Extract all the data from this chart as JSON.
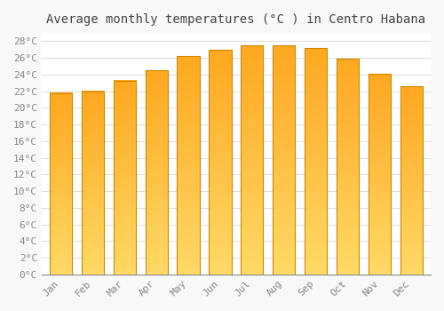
{
  "title": "Average monthly temperatures (°C ) in Centro Habana",
  "months": [
    "Jan",
    "Feb",
    "Mar",
    "Apr",
    "May",
    "Jun",
    "Jul",
    "Aug",
    "Sep",
    "Oct",
    "Nov",
    "Dec"
  ],
  "values": [
    21.8,
    22.0,
    23.3,
    24.5,
    26.2,
    27.0,
    27.5,
    27.5,
    27.2,
    25.9,
    24.1,
    22.6
  ],
  "bar_color": "#FFA820",
  "bar_color_light": "#FFD966",
  "bar_edge_color": "#CC8800",
  "background_color": "#F8F8F8",
  "plot_bg_color": "#FFFFFF",
  "grid_color": "#DDDDDD",
  "ylim": [
    0,
    29
  ],
  "yticks": [
    0,
    2,
    4,
    6,
    8,
    10,
    12,
    14,
    16,
    18,
    20,
    22,
    24,
    26,
    28
  ],
  "title_fontsize": 10,
  "tick_fontsize": 8,
  "title_color": "#444444",
  "tick_color": "#888888",
  "font_family": "monospace"
}
